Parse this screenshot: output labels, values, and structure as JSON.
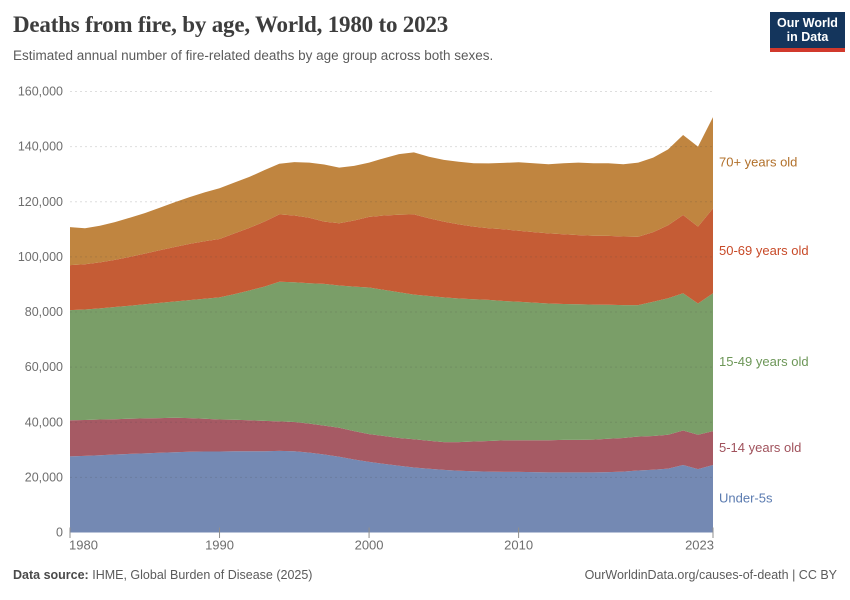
{
  "header": {
    "title": "Deaths from fire, by age, World, 1980 to 2023",
    "subtitle": "Estimated annual number of fire-related deaths by age group across both sexes."
  },
  "logo": {
    "line1": "Our World",
    "line2": "in Data"
  },
  "chart_data": {
    "type": "area",
    "stacked": true,
    "title": "Deaths from fire, by age, World, 1980 to 2023",
    "subtitle": "Estimated annual number of fire-related deaths by age group across both sexes.",
    "xlabel": "",
    "ylabel": "",
    "grid": "dashed-horizontal",
    "legend_position": "right-edge-labels",
    "ylim": [
      0,
      160000
    ],
    "yticks": [
      0,
      20000,
      40000,
      60000,
      80000,
      100000,
      120000,
      140000,
      160000
    ],
    "xticks": [
      1980,
      1990,
      2000,
      2010,
      2023
    ],
    "x": [
      1980,
      1981,
      1982,
      1983,
      1984,
      1985,
      1986,
      1987,
      1988,
      1989,
      1990,
      1991,
      1992,
      1993,
      1994,
      1995,
      1996,
      1997,
      1998,
      1999,
      2000,
      2001,
      2002,
      2003,
      2004,
      2005,
      2006,
      2007,
      2008,
      2009,
      2010,
      2011,
      2012,
      2013,
      2014,
      2015,
      2016,
      2017,
      2018,
      2019,
      2020,
      2021,
      2022,
      2023
    ],
    "series": [
      {
        "name": "under-5s",
        "label": "Under-5s",
        "color": "#7489b3",
        "label_color": "#5b7bb0",
        "values": [
          27600,
          27800,
          28000,
          28300,
          28500,
          28700,
          28900,
          29100,
          29300,
          29400,
          29400,
          29500,
          29500,
          29500,
          29600,
          29500,
          29000,
          28300,
          27500,
          26500,
          25600,
          24900,
          24200,
          23600,
          23100,
          22700,
          22400,
          22200,
          22100,
          22000,
          22000,
          21900,
          21800,
          21800,
          21800,
          21800,
          21900,
          22100,
          22500,
          22800,
          23200,
          24500,
          23000,
          24500
        ]
      },
      {
        "name": "5-14-years-old",
        "label": "5-14 years old",
        "color": "#a65a64",
        "label_color": "#a0525c",
        "values": [
          13100,
          13000,
          13000,
          12800,
          12800,
          12700,
          12600,
          12500,
          12200,
          11900,
          11600,
          11400,
          11200,
          11000,
          10700,
          10600,
          10500,
          10500,
          10500,
          10300,
          10100,
          10100,
          10100,
          10200,
          10200,
          10100,
          10400,
          10800,
          11100,
          11400,
          11500,
          11600,
          11700,
          11800,
          11800,
          11900,
          12100,
          12200,
          12300,
          12200,
          12300,
          12500,
          12500,
          12300
        ]
      },
      {
        "name": "15-49-years-old",
        "label": "15-49 years old",
        "color": "#7a9e68",
        "label_color": "#6d9758",
        "values": [
          40000,
          40100,
          40300,
          40700,
          41000,
          41400,
          41800,
          42200,
          42800,
          43500,
          44300,
          45600,
          47100,
          48700,
          50700,
          50700,
          50900,
          51400,
          51600,
          52400,
          53200,
          53000,
          52900,
          52500,
          52500,
          52500,
          52100,
          51600,
          51200,
          50600,
          50200,
          49900,
          49600,
          49300,
          49200,
          49000,
          48600,
          48200,
          47700,
          48700,
          49500,
          49800,
          47600,
          50000
        ]
      },
      {
        "name": "50-69-years-old",
        "label": "50-69 years old",
        "color": "#c55c35",
        "label_color": "#c84a28",
        "values": [
          16300,
          16400,
          16700,
          17100,
          17700,
          18400,
          19100,
          19800,
          20400,
          20900,
          21200,
          22000,
          22700,
          23600,
          24400,
          24200,
          23800,
          22600,
          22600,
          24000,
          25600,
          27000,
          28100,
          29100,
          28200,
          27500,
          26900,
          26400,
          26000,
          26000,
          25800,
          25600,
          25400,
          25300,
          25100,
          25000,
          25000,
          24900,
          24800,
          25300,
          26500,
          28400,
          27900,
          30800
        ]
      },
      {
        "name": "70-plus-years-old",
        "label": "70+ years old",
        "color": "#c08540",
        "label_color": "#b1702a",
        "values": [
          13800,
          13100,
          13300,
          13700,
          14200,
          14700,
          15400,
          16200,
          17000,
          17700,
          18400,
          18500,
          18500,
          18700,
          18400,
          19400,
          20000,
          20700,
          20200,
          19800,
          19700,
          20800,
          22000,
          22500,
          22300,
          22400,
          22700,
          23000,
          23500,
          24100,
          24800,
          25000,
          25100,
          25800,
          26300,
          26300,
          26400,
          26200,
          26900,
          27000,
          27500,
          29000,
          29000,
          33100
        ]
      }
    ]
  },
  "footer": {
    "source_label": "Data source:",
    "source_value": "IHME, Global Burden of Disease (2025)",
    "credit": "OurWorldinData.org/causes-of-death | CC BY"
  }
}
